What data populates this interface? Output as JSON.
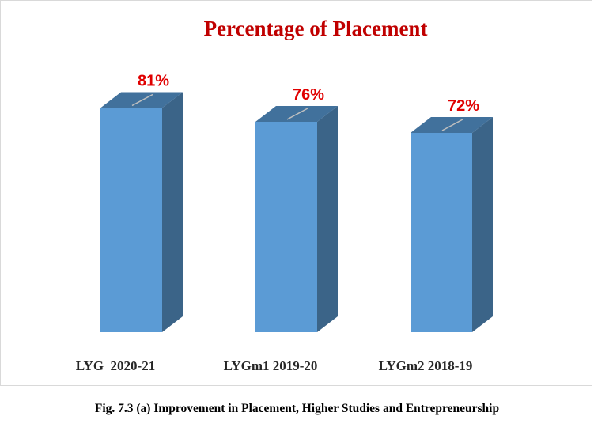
{
  "chart_data": {
    "type": "bar",
    "title": "Percentage of Placement",
    "categories": [
      "LYG  2020-21",
      "LYGm1 2019-20",
      "LYGm2 2018-19"
    ],
    "values": [
      81,
      76,
      72
    ],
    "data_labels": [
      "81%",
      "76%",
      "72%"
    ],
    "unit": "%",
    "three_d": true,
    "colors": {
      "bar_front": "#5b9bd5",
      "bar_side": "#3b6488",
      "bar_top": "#41719c",
      "title": "#c00000",
      "data_label": "#e00000"
    }
  },
  "caption": "Fig. 7.3 (a) Improvement in Placement, Higher Studies and Entrepreneurship"
}
